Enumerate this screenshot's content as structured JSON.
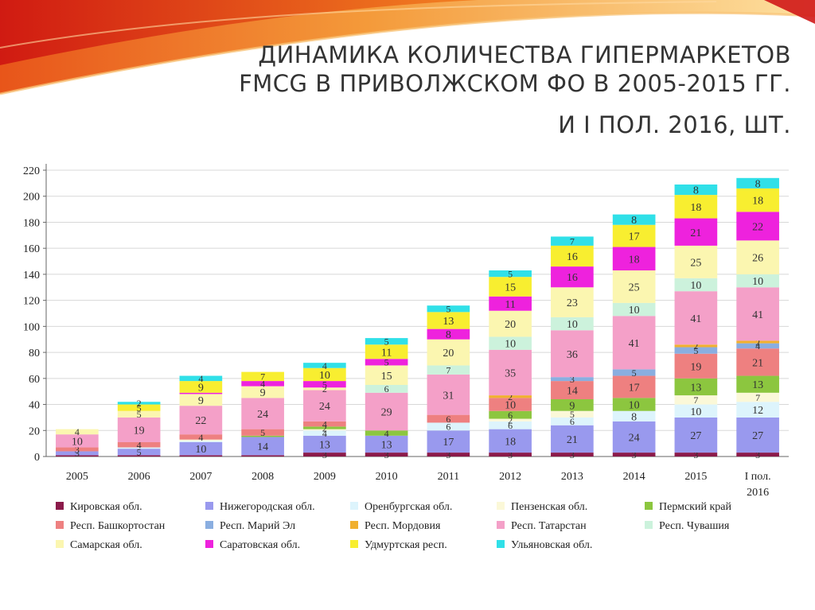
{
  "title": {
    "line1": "ДИНАМИКА КОЛИЧЕСТВА ГИПЕРМАРКЕТОВ",
    "line2": "FMCG В ПРИВОЛЖСКОМ ФО В 2005-2015 ГГ.",
    "line3": "И I ПОЛ. 2016, ШТ."
  },
  "chart_data": {
    "type": "bar",
    "stacked": true,
    "title": "",
    "xlabel": "",
    "ylabel": "",
    "ylim": [
      0,
      220
    ],
    "yticks": [
      0,
      20,
      40,
      60,
      80,
      100,
      120,
      140,
      160,
      180,
      200,
      220
    ],
    "grid": true,
    "legend_position": "bottom",
    "categories": [
      "2005",
      "2006",
      "2007",
      "2008",
      "2009",
      "2010",
      "2011",
      "2012",
      "2013",
      "2014",
      "2015",
      "I пол. 2016"
    ],
    "series": [
      {
        "name": "Кировская обл.",
        "color": "#8b1a4a",
        "values": [
          1,
          1,
          1,
          1,
          3,
          3,
          3,
          3,
          3,
          3,
          3,
          3
        ]
      },
      {
        "name": "Нижегородская обл.",
        "color": "#9999ee",
        "values": [
          3,
          5,
          10,
          14,
          13,
          13,
          17,
          18,
          21,
          24,
          27,
          27
        ]
      },
      {
        "name": "Оренбургская обл.",
        "color": "#ddf4fc",
        "values": [
          0,
          1,
          1,
          0,
          4,
          0,
          6,
          6,
          6,
          8,
          10,
          12
        ]
      },
      {
        "name": "Пензенская обл.",
        "color": "#fbf8d8",
        "values": [
          0,
          0,
          1,
          0,
          1,
          0,
          0,
          2,
          5,
          0,
          7,
          7
        ]
      },
      {
        "name": "Пермский край",
        "color": "#8cc63f",
        "values": [
          0,
          0,
          0,
          1,
          2,
          4,
          0,
          6,
          9,
          10,
          13,
          13
        ]
      },
      {
        "name": "Респ. Башкортостан",
        "color": "#ee8080",
        "values": [
          3,
          4,
          4,
          5,
          4,
          0,
          6,
          10,
          14,
          17,
          19,
          21
        ]
      },
      {
        "name": "Респ. Марий Эл",
        "color": "#8aaee0",
        "values": [
          0,
          0,
          0,
          0,
          0,
          0,
          0,
          0,
          3,
          5,
          5,
          4
        ]
      },
      {
        "name": "Респ. Мордовия",
        "color": "#f0b030",
        "values": [
          0,
          0,
          0,
          0,
          0,
          0,
          0,
          2,
          0,
          0,
          2,
          2
        ]
      },
      {
        "name": "Респ. Татарстан",
        "color": "#f4a0c8",
        "values": [
          10,
          19,
          22,
          24,
          24,
          29,
          31,
          35,
          36,
          41,
          41,
          41
        ]
      },
      {
        "name": "Респ. Чувашия",
        "color": "#ccf2dc",
        "values": [
          0,
          0,
          0,
          0,
          0,
          6,
          7,
          10,
          10,
          10,
          10,
          10
        ]
      },
      {
        "name": "Самарская обл.",
        "color": "#fbf6b0",
        "values": [
          4,
          5,
          9,
          9,
          2,
          15,
          20,
          20,
          23,
          25,
          25,
          26
        ]
      },
      {
        "name": "Саратовская обл.",
        "color": "#ee22dd",
        "values": [
          0,
          0,
          1,
          4,
          5,
          5,
          8,
          11,
          16,
          18,
          21,
          22
        ]
      },
      {
        "name": "Удмуртская респ.",
        "color": "#f8ee30",
        "values": [
          0,
          5,
          9,
          7,
          10,
          11,
          13,
          15,
          16,
          17,
          18,
          18
        ]
      },
      {
        "name": "Ульяновская обл.",
        "color": "#30e0e8",
        "values": [
          0,
          2,
          4,
          0,
          4,
          5,
          5,
          5,
          7,
          8,
          8,
          8
        ]
      }
    ]
  }
}
